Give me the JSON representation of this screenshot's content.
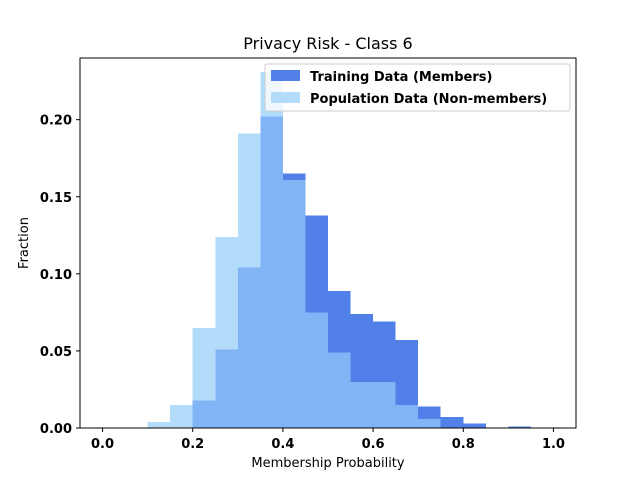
{
  "chart_data": {
    "type": "bar",
    "title": "Privacy Risk - Class 6",
    "xlabel": "Membership Probability",
    "ylabel": "Fraction",
    "xlim": [
      -0.05,
      1.05
    ],
    "ylim": [
      0,
      0.24
    ],
    "x_ticks": [
      0.0,
      0.2,
      0.4,
      0.6,
      0.8,
      1.0
    ],
    "x_tick_labels": [
      "0.0",
      "0.2",
      "0.4",
      "0.6",
      "0.8",
      "1.0"
    ],
    "y_ticks": [
      0.0,
      0.05,
      0.1,
      0.15,
      0.2
    ],
    "y_tick_labels": [
      "0.00",
      "0.05",
      "0.10",
      "0.15",
      "0.20"
    ],
    "bin_edges": [
      0.0,
      0.05,
      0.1,
      0.15,
      0.2,
      0.25,
      0.3,
      0.35,
      0.4,
      0.45,
      0.5,
      0.55,
      0.6,
      0.65,
      0.7,
      0.75,
      0.8,
      0.85,
      0.9,
      0.95,
      1.0
    ],
    "series": [
      {
        "name": "Training Data (Members)",
        "color": "#5080e8",
        "values": [
          0,
          0,
          0,
          0,
          0.018,
          0.051,
          0.104,
          0.202,
          0.165,
          0.138,
          0.089,
          0.074,
          0.069,
          0.057,
          0.014,
          0.007,
          0.003,
          0,
          0.001,
          0
        ]
      },
      {
        "name": "Population Data (Non-members)",
        "color": "#b3dcfa",
        "values": [
          0,
          0,
          0.004,
          0.015,
          0.065,
          0.124,
          0.191,
          0.231,
          0.161,
          0.075,
          0.049,
          0.03,
          0.03,
          0.015,
          0.006,
          0,
          0,
          0,
          0,
          0
        ]
      }
    ],
    "overlap_color": "#80b4f5",
    "legend_position": "top-right",
    "grid": false
  }
}
